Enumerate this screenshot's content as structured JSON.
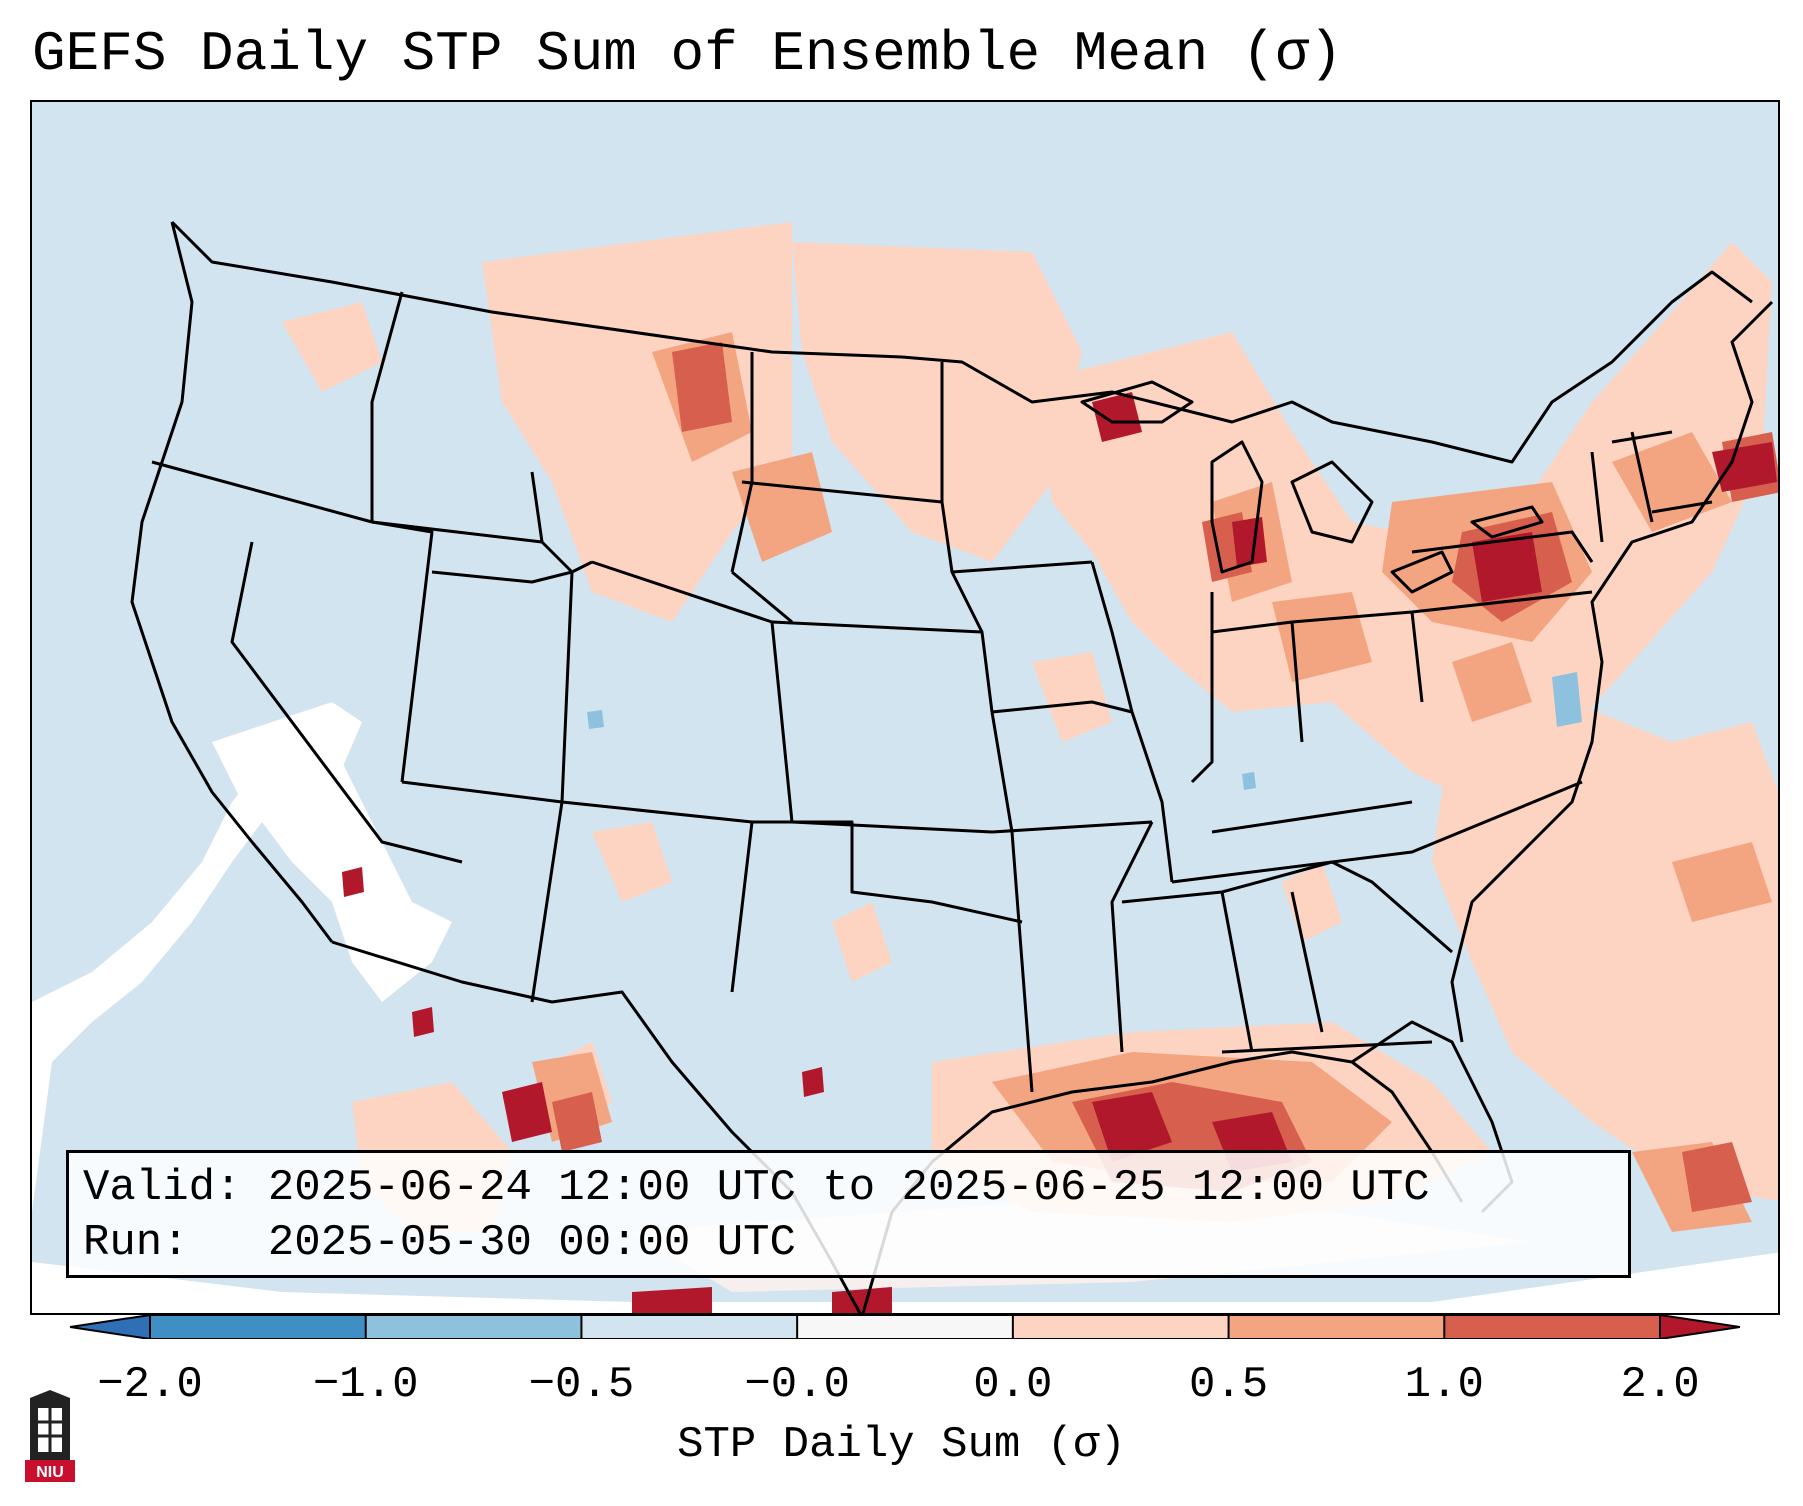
{
  "title": "GEFS Daily STP Sum of Ensemble Mean (σ)",
  "info": {
    "valid_label": "Valid:",
    "valid_value": "2025-06-24 12:00 UTC to 2025-06-25 12:00 UTC",
    "run_label": "Run:",
    "run_value": "2025-05-30 00:00 UTC"
  },
  "colorbar": {
    "label": "STP Daily Sum (σ)",
    "ticks": [
      "−2.0",
      "−1.0",
      "−0.5",
      "−0.0",
      "0.0",
      "0.5",
      "1.0",
      "2.0"
    ],
    "colors": [
      "#3f8fc5",
      "#8ec1de",
      "#d2e4f0",
      "#f7f7f7",
      "#fdd4c2",
      "#f3a481",
      "#d6604d",
      "#b2182b"
    ]
  },
  "logo": {
    "text": "NIU",
    "icon": "university-tower-icon"
  },
  "map": {
    "region": "Continental United States",
    "colors": {
      "ocean_background": "#d2e4f0",
      "missing": "#ffffff",
      "light_pos": "#fdd4c2",
      "med_pos": "#f3a481",
      "high_pos": "#d6604d",
      "max_pos": "#b2182b",
      "neg": "#8ec1de"
    }
  }
}
